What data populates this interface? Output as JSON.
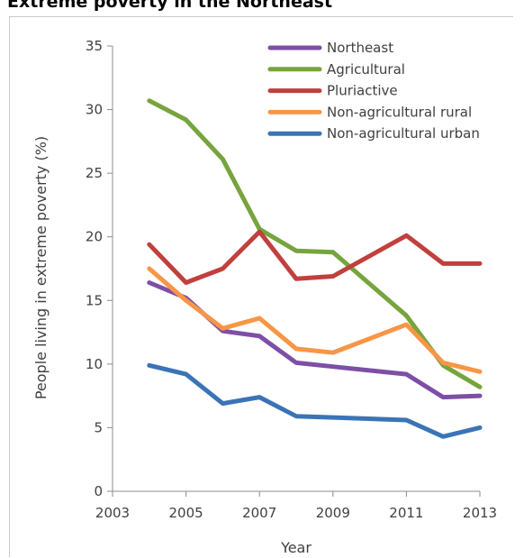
{
  "title": "Extreme poverty in the Northeast",
  "chart_data": {
    "type": "line",
    "xlabel": "Year",
    "ylabel": "People living in extreme poverty (%)",
    "xlim": [
      2003,
      2013
    ],
    "ylim": [
      0,
      35
    ],
    "x_ticks": [
      2003,
      2005,
      2007,
      2009,
      2011,
      2013
    ],
    "y_ticks": [
      0,
      5,
      10,
      15,
      20,
      25,
      30,
      35
    ],
    "grid": false,
    "legend_position": "top-right",
    "x": [
      2004,
      2005,
      2006,
      2007,
      2008,
      2009,
      2011,
      2012,
      2013
    ],
    "series": [
      {
        "name": "Northeast",
        "color": "#7e4fa6",
        "values": [
          16.4,
          15.2,
          12.6,
          12.2,
          10.1,
          9.8,
          9.2,
          7.4,
          7.5
        ]
      },
      {
        "name": "Agricultural",
        "color": "#76a43d",
        "values": [
          30.7,
          29.2,
          26.1,
          20.6,
          18.9,
          18.8,
          13.8,
          9.9,
          8.2
        ]
      },
      {
        "name": "Pluriactive",
        "color": "#c0403d",
        "values": [
          19.4,
          16.4,
          17.5,
          20.4,
          16.7,
          16.9,
          20.1,
          17.9,
          17.9
        ]
      },
      {
        "name": "Non-agricultural rural",
        "color": "#f79646",
        "values": [
          17.5,
          15.0,
          12.8,
          13.6,
          11.2,
          10.9,
          13.1,
          10.1,
          9.4
        ]
      },
      {
        "name": "Non-agricultural urban",
        "color": "#3b74b6",
        "values": [
          9.9,
          9.2,
          6.9,
          7.4,
          5.9,
          5.8,
          5.6,
          4.3,
          5.0
        ]
      }
    ]
  }
}
